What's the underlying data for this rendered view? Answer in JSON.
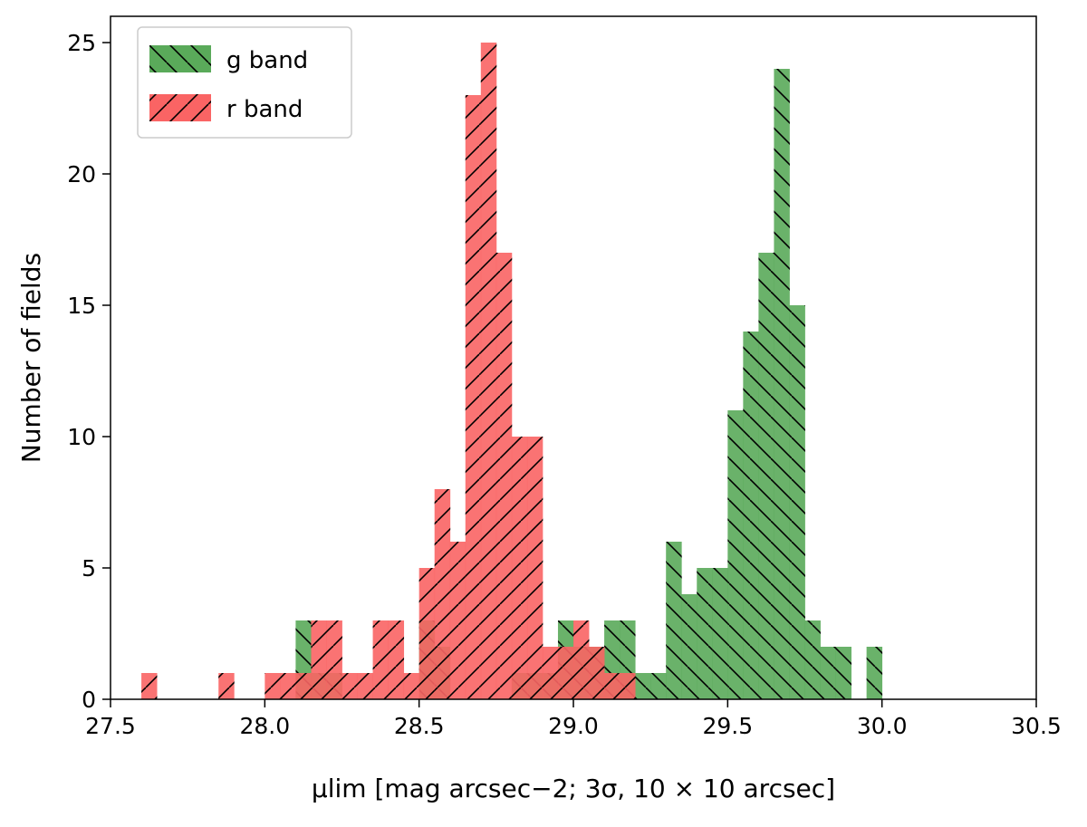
{
  "chart_data": {
    "type": "bar",
    "title": "",
    "xlabel": "μlim [mag arcsec−2; 3σ, 10 × 10 arcsec]",
    "ylabel": "Number of fields",
    "xlim": [
      27.5,
      30.5
    ],
    "ylim": [
      0,
      26
    ],
    "xticks": [
      "27.5",
      "28.0",
      "28.5",
      "29.0",
      "29.5",
      "30.0",
      "30.5"
    ],
    "yticks": [
      "0",
      "5",
      "10",
      "15",
      "20",
      "25"
    ],
    "bin_width": 0.05,
    "grid": false,
    "legend": "top-left",
    "series": [
      {
        "name": "g band",
        "color": "#5aaa5a",
        "hatch": "backslash",
        "bins": [
          {
            "x0": 28.1,
            "count": 3
          },
          {
            "x0": 28.15,
            "count": 1
          },
          {
            "x0": 28.2,
            "count": 1
          },
          {
            "x0": 28.5,
            "count": 3
          },
          {
            "x0": 28.55,
            "count": 2
          },
          {
            "x0": 28.8,
            "count": 1
          },
          {
            "x0": 28.85,
            "count": 1
          },
          {
            "x0": 28.9,
            "count": 1
          },
          {
            "x0": 28.95,
            "count": 3
          },
          {
            "x0": 29.0,
            "count": 2
          },
          {
            "x0": 29.05,
            "count": 2
          },
          {
            "x0": 29.1,
            "count": 3
          },
          {
            "x0": 29.15,
            "count": 3
          },
          {
            "x0": 29.2,
            "count": 1
          },
          {
            "x0": 29.25,
            "count": 1
          },
          {
            "x0": 29.3,
            "count": 6
          },
          {
            "x0": 29.35,
            "count": 4
          },
          {
            "x0": 29.4,
            "count": 5
          },
          {
            "x0": 29.45,
            "count": 5
          },
          {
            "x0": 29.5,
            "count": 11
          },
          {
            "x0": 29.55,
            "count": 14
          },
          {
            "x0": 29.6,
            "count": 17
          },
          {
            "x0": 29.65,
            "count": 24
          },
          {
            "x0": 29.7,
            "count": 15
          },
          {
            "x0": 29.75,
            "count": 3
          },
          {
            "x0": 29.8,
            "count": 2
          },
          {
            "x0": 29.85,
            "count": 2
          },
          {
            "x0": 29.95,
            "count": 2
          }
        ]
      },
      {
        "name": "r band",
        "color": "#fa6464",
        "hatch": "slash",
        "bins": [
          {
            "x0": 27.6,
            "count": 1
          },
          {
            "x0": 27.85,
            "count": 1
          },
          {
            "x0": 28.0,
            "count": 1
          },
          {
            "x0": 28.05,
            "count": 1
          },
          {
            "x0": 28.1,
            "count": 1
          },
          {
            "x0": 28.15,
            "count": 3
          },
          {
            "x0": 28.2,
            "count": 3
          },
          {
            "x0": 28.25,
            "count": 1
          },
          {
            "x0": 28.3,
            "count": 1
          },
          {
            "x0": 28.35,
            "count": 3
          },
          {
            "x0": 28.4,
            "count": 3
          },
          {
            "x0": 28.45,
            "count": 1
          },
          {
            "x0": 28.5,
            "count": 5
          },
          {
            "x0": 28.55,
            "count": 8
          },
          {
            "x0": 28.6,
            "count": 6
          },
          {
            "x0": 28.65,
            "count": 23
          },
          {
            "x0": 28.7,
            "count": 25
          },
          {
            "x0": 28.75,
            "count": 17
          },
          {
            "x0": 28.8,
            "count": 10
          },
          {
            "x0": 28.85,
            "count": 10
          },
          {
            "x0": 28.9,
            "count": 2
          },
          {
            "x0": 28.95,
            "count": 2
          },
          {
            "x0": 29.0,
            "count": 3
          },
          {
            "x0": 29.05,
            "count": 2
          },
          {
            "x0": 29.1,
            "count": 1
          },
          {
            "x0": 29.15,
            "count": 1
          }
        ]
      }
    ]
  }
}
